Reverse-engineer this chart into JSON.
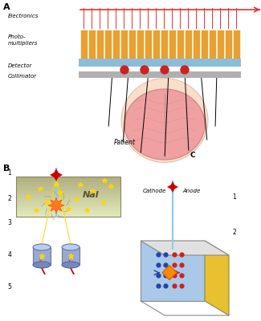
{
  "fig_width": 3.25,
  "fig_height": 4.0,
  "dpi": 100,
  "bg_color": "#ffffff",
  "label_A": "A",
  "label_B": "B",
  "text_electronics": "Electronics",
  "text_photomultipliers": "Photo-\nmultipliers",
  "text_detector": "Detector",
  "text_collimator": "Collimator",
  "text_patient": "Patient",
  "text_C": "C",
  "text_NaI": "NaI",
  "text_cathode": "Cathode",
  "text_anode": "Anode",
  "pmt_color": "#E8A030",
  "detector_blue": "#8BBDD9",
  "collimator_gray": "#B0B0B0",
  "red_color": "#CC2222",
  "brain_color": "#F0A0A0",
  "brain_outline": "#CC8888",
  "head_color": "#F5C8A8",
  "yellow_star": "#FFD700",
  "red_star": "#CC0000",
  "light_blue": "#87CEEB",
  "nal_color1": "#E8D898",
  "nal_color2": "#C8B060",
  "cyl_color": "#8899BB",
  "box_blue": "#AAC8E8",
  "box_yellow": "#E8C030",
  "blue_dot": "#2244AA",
  "red_dot": "#CC2222",
  "orange_flash": "#FF8800"
}
